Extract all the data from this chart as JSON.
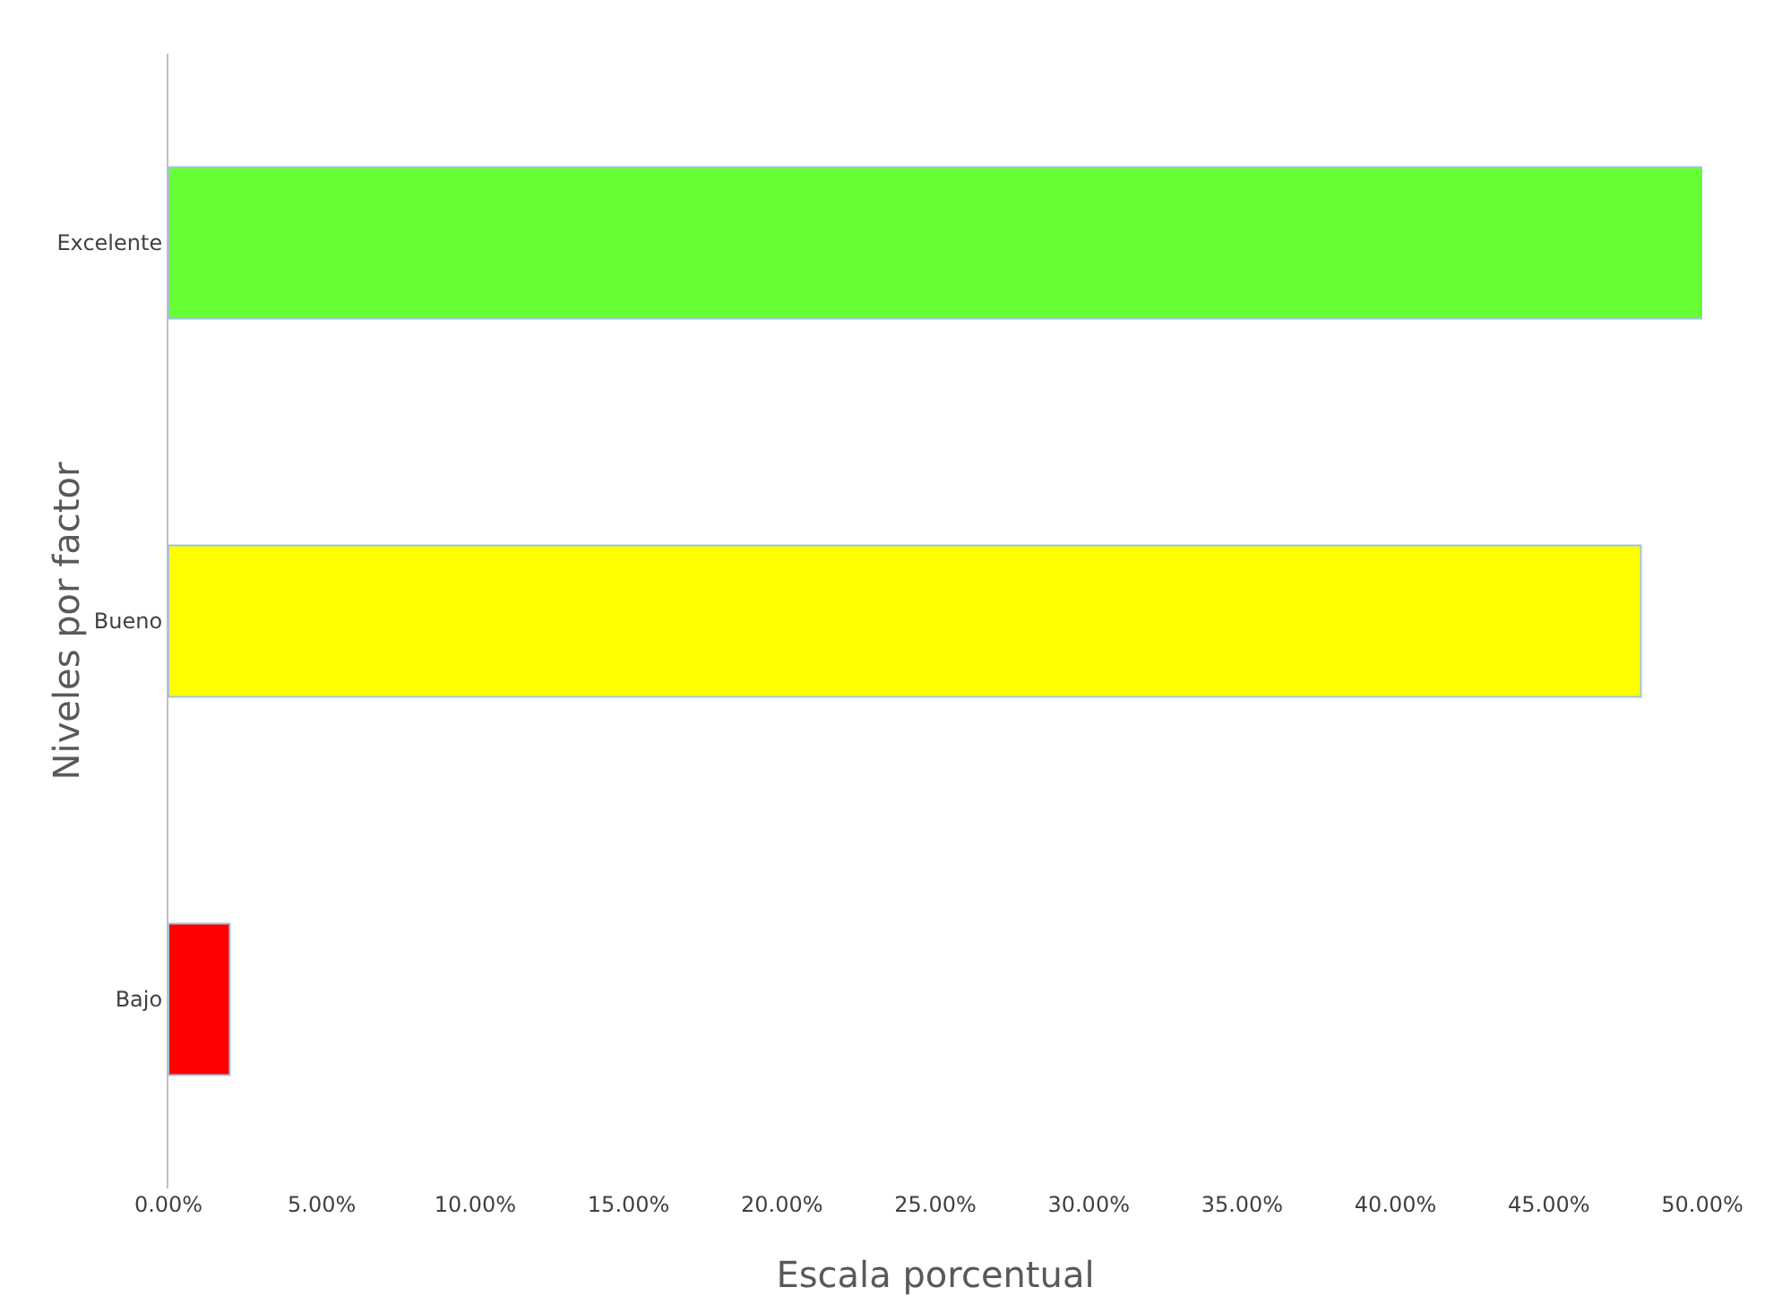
{
  "chart_data": {
    "type": "bar",
    "orientation": "horizontal",
    "xlabel": "Escala porcentual",
    "ylabel": "Niveles por factor",
    "categories": [
      "Excelente",
      "Bueno",
      "Bajo"
    ],
    "values": [
      50,
      48,
      2
    ],
    "colors": [
      "#66ff33",
      "#ffff00",
      "#ff0000"
    ],
    "xlim": [
      0,
      50
    ],
    "xticks": [
      {
        "value": 0,
        "label": "0.00%"
      },
      {
        "value": 5,
        "label": "5.00%"
      },
      {
        "value": 10,
        "label": "10.00%"
      },
      {
        "value": 15,
        "label": "15.00%"
      },
      {
        "value": 20,
        "label": "20.00%"
      },
      {
        "value": 25,
        "label": "25.00%"
      },
      {
        "value": 30,
        "label": "30.00%"
      },
      {
        "value": 35,
        "label": "35.00%"
      },
      {
        "value": 40,
        "label": "40.00%"
      },
      {
        "value": 45,
        "label": "45.00%"
      },
      {
        "value": 50,
        "label": "50.00%"
      }
    ],
    "grid": false,
    "legend": false
  }
}
